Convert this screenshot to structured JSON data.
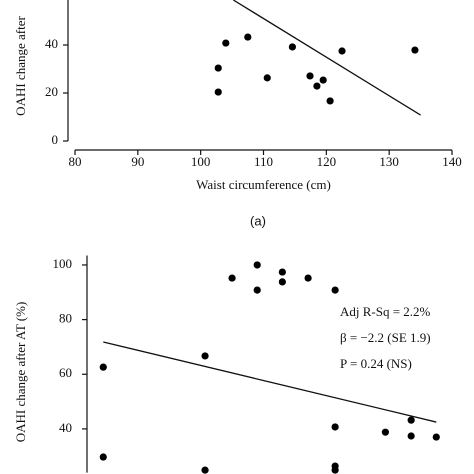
{
  "chart_data": [
    {
      "type": "scatter",
      "x_label": "Waist circumference (cm)",
      "y_label": "OAHI change after",
      "panel_label": "(a)",
      "xlim": [
        80,
        140
      ],
      "xticks": [
        80,
        90,
        100,
        110,
        120,
        130,
        140
      ],
      "ylim": [
        0,
        58.75
      ],
      "yticks": [
        0,
        20,
        40
      ],
      "color": "#000000",
      "x": [
        102.8,
        102.8,
        104,
        107.5,
        110.6,
        114.6,
        117.4,
        118.5,
        119.5,
        120.6,
        122.5,
        134.1
      ],
      "values": [
        30.4,
        20.4,
        40.8,
        43.3,
        26.3,
        39.2,
        27.1,
        22.9,
        25.4,
        16.7,
        37.5,
        37.9
      ],
      "fit": {
        "x": [
          105.2,
          135
        ],
        "y": [
          58.75,
          10.8
        ]
      }
    },
    {
      "type": "scatter",
      "y_label": "OAHI change after AT (%)",
      "annotations": [
        "Adj R-Sq = 2.2%",
        "β = −2.2 (SE 1.9)",
        "P = 0.24 (NS)"
      ],
      "xlim": [
        80,
        140
      ],
      "ylim": [
        24,
        102
      ],
      "yticks": [
        40,
        60,
        80,
        100
      ],
      "color": "#000000",
      "x": [
        84.5,
        84.5,
        100.7,
        100.7,
        105,
        109,
        109,
        113,
        113,
        117.1,
        121.4,
        121.4,
        121.4,
        121.4,
        129.4,
        133.5,
        133.5,
        137.5
      ],
      "values": [
        62.6,
        29.7,
        66.7,
        24.9,
        95.2,
        100,
        90.8,
        97.4,
        93.8,
        95.2,
        90.8,
        40.7,
        26.4,
        24.9,
        38.8,
        43.2,
        37.4,
        37
      ],
      "fit": {
        "x": [
          84.5,
          137.5
        ],
        "y": [
          71.8,
          42.5
        ]
      }
    }
  ]
}
